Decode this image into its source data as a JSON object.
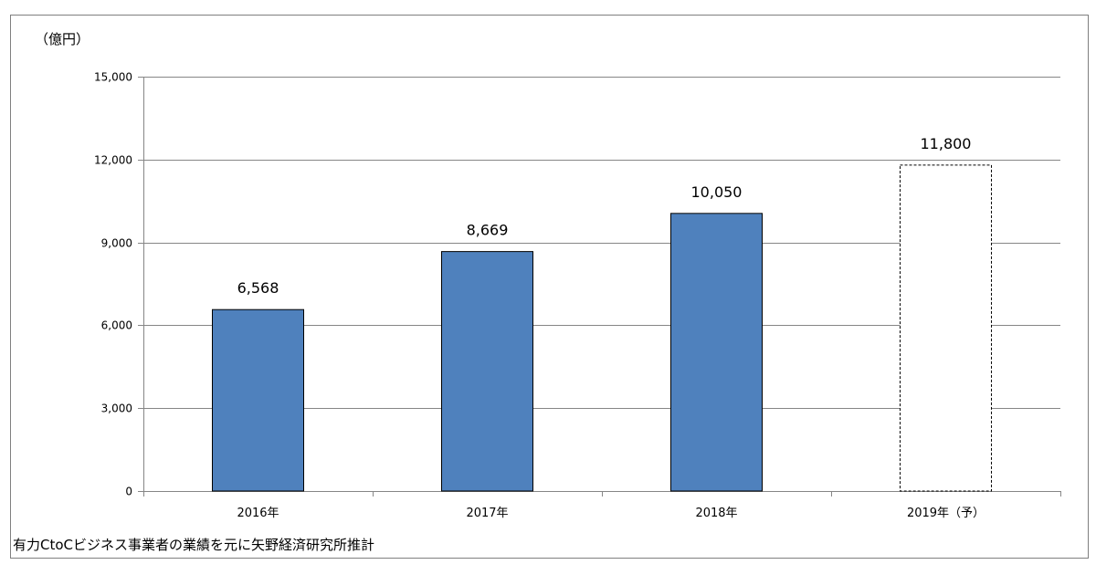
{
  "chart_data": {
    "type": "bar",
    "ylabel": "（億円）",
    "categories": [
      "2016年",
      "2017年",
      "2018年",
      "2019年（予）"
    ],
    "values": [
      6568,
      8669,
      10050,
      11800
    ],
    "value_labels": [
      "6,568",
      "8,669",
      "10,050",
      "11,800"
    ],
    "forecast": [
      false,
      false,
      false,
      true
    ],
    "yticks": [
      0,
      3000,
      6000,
      9000,
      12000,
      15000
    ],
    "ytick_labels": [
      "0",
      "3,000",
      "6,000",
      "9,000",
      "12,000",
      "15,000"
    ],
    "ylim": [
      0,
      15000
    ],
    "grid": true,
    "bar_color": "#4f81bd",
    "forecast_bar_color": "#ffffff"
  },
  "source_note": "有力CtoCビジネス事業者の業績を元に矢野経済研究所推計"
}
